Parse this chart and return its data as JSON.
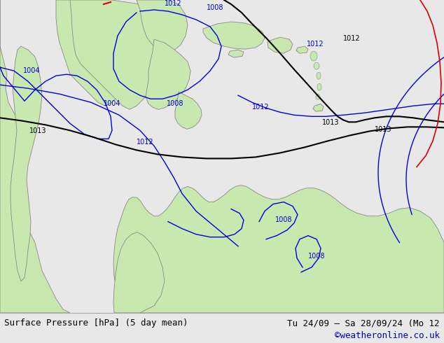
{
  "title_left": "Surface Pressure [hPa] (5 day mean)",
  "title_right": "Tu 24/09 – Sa 28/09/24 (Mo 12",
  "credit": "©weatheronline.co.uk",
  "bg_color": "#e8e8e8",
  "land_color": "#c8e8b0",
  "ocean_color": "#e8e8e8",
  "border_color": "#888888",
  "contour_blue": "#0000dd",
  "contour_black": "#000000",
  "contour_red": "#dd0000",
  "figsize": [
    6.34,
    4.9
  ],
  "dpi": 100,
  "bottom_bar_color": "#d8d8d8",
  "font_size_bottom": 9,
  "font_size_credit": 9,
  "font_size_labels": 7
}
